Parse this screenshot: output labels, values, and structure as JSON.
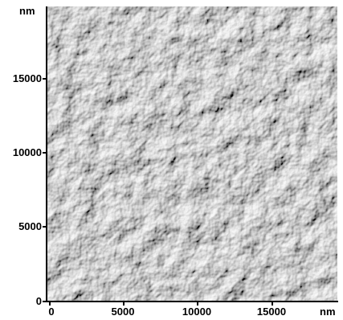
{
  "figure": {
    "y_unit": "nm",
    "x_unit": "nm",
    "y_ticks": [
      "15000",
      "10000",
      "5000",
      "0"
    ],
    "x_ticks": [
      "0",
      "5000",
      "10000",
      "15000"
    ]
  },
  "colors": {
    "surface_base": "#8a8a8a",
    "highlight": "#e6e6e6",
    "shadow": "#2c2c2c"
  },
  "image": {
    "subject": "afm-surface-topography-icon"
  }
}
